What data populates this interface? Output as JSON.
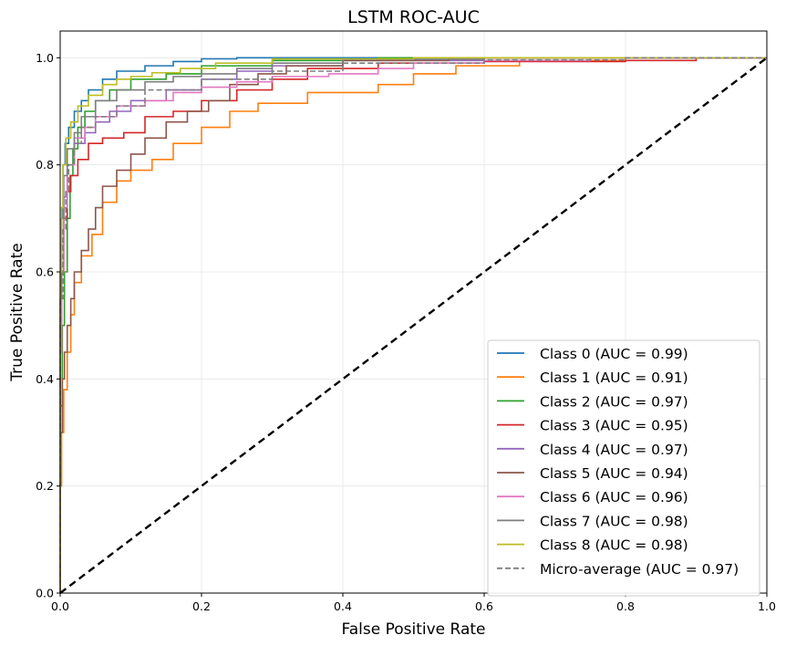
{
  "chart_data": {
    "type": "line",
    "title": "LSTM ROC-AUC",
    "xlabel": "False Positive Rate",
    "ylabel": "True Positive Rate",
    "xlim": [
      0,
      1.0
    ],
    "ylim": [
      0,
      1.05
    ],
    "xticks": [
      "0.0",
      "0.2",
      "0.4",
      "0.6",
      "0.8",
      "1.0"
    ],
    "yticks": [
      "0.0",
      "0.2",
      "0.4",
      "0.6",
      "0.8",
      "1.0"
    ],
    "grid": true,
    "legend_position": "lower right",
    "series": [
      {
        "name": "Class 0 (AUC = 0.99)",
        "color": "#1f77b4",
        "dash": "solid",
        "points": [
          [
            0,
            0
          ],
          [
            0.002,
            0.5
          ],
          [
            0.004,
            0.7
          ],
          [
            0.007,
            0.8
          ],
          [
            0.012,
            0.84
          ],
          [
            0.02,
            0.87
          ],
          [
            0.03,
            0.9
          ],
          [
            0.04,
            0.92
          ],
          [
            0.06,
            0.94
          ],
          [
            0.08,
            0.96
          ],
          [
            0.12,
            0.975
          ],
          [
            0.16,
            0.985
          ],
          [
            0.2,
            0.993
          ],
          [
            0.25,
            0.998
          ],
          [
            0.4,
            1.0
          ],
          [
            1.0,
            1.0
          ]
        ]
      },
      {
        "name": "Class 1 (AUC = 0.91)",
        "color": "#ff7f0e",
        "dash": "solid",
        "points": [
          [
            0,
            0
          ],
          [
            0.002,
            0.2
          ],
          [
            0.005,
            0.3
          ],
          [
            0.01,
            0.38
          ],
          [
            0.015,
            0.45
          ],
          [
            0.02,
            0.52
          ],
          [
            0.03,
            0.58
          ],
          [
            0.045,
            0.63
          ],
          [
            0.06,
            0.67
          ],
          [
            0.08,
            0.73
          ],
          [
            0.1,
            0.77
          ],
          [
            0.13,
            0.79
          ],
          [
            0.16,
            0.81
          ],
          [
            0.2,
            0.84
          ],
          [
            0.24,
            0.87
          ],
          [
            0.28,
            0.9
          ],
          [
            0.35,
            0.915
          ],
          [
            0.45,
            0.935
          ],
          [
            0.5,
            0.95
          ],
          [
            0.56,
            0.97
          ],
          [
            0.65,
            0.985
          ],
          [
            0.8,
            0.995
          ],
          [
            1.0,
            1.0
          ]
        ]
      },
      {
        "name": "Class 2 (AUC = 0.97)",
        "color": "#2ca02c",
        "dash": "solid",
        "points": [
          [
            0,
            0
          ],
          [
            0.003,
            0.35
          ],
          [
            0.006,
            0.5
          ],
          [
            0.01,
            0.6
          ],
          [
            0.014,
            0.7
          ],
          [
            0.018,
            0.78
          ],
          [
            0.025,
            0.83
          ],
          [
            0.035,
            0.87
          ],
          [
            0.05,
            0.9
          ],
          [
            0.07,
            0.92
          ],
          [
            0.1,
            0.94
          ],
          [
            0.15,
            0.96
          ],
          [
            0.2,
            0.97
          ],
          [
            0.3,
            0.985
          ],
          [
            0.45,
            0.995
          ],
          [
            0.65,
            1.0
          ],
          [
            1.0,
            1.0
          ]
        ]
      },
      {
        "name": "Class 3 (AUC = 0.95)",
        "color": "#d62728",
        "dash": "solid",
        "points": [
          [
            0,
            0
          ],
          [
            0.002,
            0.45
          ],
          [
            0.005,
            0.6
          ],
          [
            0.01,
            0.7
          ],
          [
            0.015,
            0.75
          ],
          [
            0.025,
            0.78
          ],
          [
            0.04,
            0.81
          ],
          [
            0.06,
            0.84
          ],
          [
            0.09,
            0.85
          ],
          [
            0.12,
            0.86
          ],
          [
            0.16,
            0.89
          ],
          [
            0.2,
            0.9
          ],
          [
            0.25,
            0.92
          ],
          [
            0.3,
            0.94
          ],
          [
            0.35,
            0.96
          ],
          [
            0.45,
            0.98
          ],
          [
            0.6,
            0.99
          ],
          [
            0.8,
            0.993
          ],
          [
            0.9,
            0.995
          ],
          [
            1.0,
            1.0
          ]
        ]
      },
      {
        "name": "Class 4 (AUC = 0.97)",
        "color": "#9467bd",
        "dash": "solid",
        "points": [
          [
            0,
            0
          ],
          [
            0.002,
            0.5
          ],
          [
            0.005,
            0.65
          ],
          [
            0.01,
            0.74
          ],
          [
            0.02,
            0.8
          ],
          [
            0.035,
            0.84
          ],
          [
            0.05,
            0.86
          ],
          [
            0.07,
            0.88
          ],
          [
            0.1,
            0.9
          ],
          [
            0.15,
            0.92
          ],
          [
            0.2,
            0.94
          ],
          [
            0.25,
            0.96
          ],
          [
            0.3,
            0.975
          ],
          [
            0.4,
            0.985
          ],
          [
            0.6,
            0.995
          ],
          [
            1.0,
            1.0
          ]
        ]
      },
      {
        "name": "Class 5 (AUC = 0.94)",
        "color": "#8c564b",
        "dash": "solid",
        "points": [
          [
            0,
            0
          ],
          [
            0.003,
            0.3
          ],
          [
            0.006,
            0.4
          ],
          [
            0.01,
            0.45
          ],
          [
            0.015,
            0.5
          ],
          [
            0.02,
            0.55
          ],
          [
            0.03,
            0.6
          ],
          [
            0.04,
            0.64
          ],
          [
            0.05,
            0.68
          ],
          [
            0.06,
            0.72
          ],
          [
            0.08,
            0.76
          ],
          [
            0.1,
            0.79
          ],
          [
            0.12,
            0.82
          ],
          [
            0.15,
            0.85
          ],
          [
            0.18,
            0.88
          ],
          [
            0.21,
            0.9
          ],
          [
            0.24,
            0.92
          ],
          [
            0.28,
            0.95
          ],
          [
            0.32,
            0.97
          ],
          [
            0.4,
            0.985
          ],
          [
            0.55,
            0.995
          ],
          [
            1.0,
            1.0
          ]
        ]
      },
      {
        "name": "Class 6 (AUC = 0.96)",
        "color": "#e377c2",
        "dash": "solid",
        "points": [
          [
            0,
            0
          ],
          [
            0.002,
            0.45
          ],
          [
            0.005,
            0.6
          ],
          [
            0.01,
            0.72
          ],
          [
            0.02,
            0.8
          ],
          [
            0.035,
            0.85
          ],
          [
            0.05,
            0.87
          ],
          [
            0.08,
            0.89
          ],
          [
            0.12,
            0.91
          ],
          [
            0.16,
            0.92
          ],
          [
            0.2,
            0.935
          ],
          [
            0.25,
            0.945
          ],
          [
            0.3,
            0.955
          ],
          [
            0.38,
            0.965
          ],
          [
            0.45,
            0.97
          ],
          [
            0.5,
            0.98
          ],
          [
            0.6,
            0.99
          ],
          [
            0.75,
            0.995
          ],
          [
            1.0,
            1.0
          ]
        ]
      },
      {
        "name": "Class 7 (AUC = 0.98)",
        "color": "#7f7f7f",
        "dash": "solid",
        "points": [
          [
            0,
            0
          ],
          [
            0.002,
            0.55
          ],
          [
            0.005,
            0.7
          ],
          [
            0.01,
            0.78
          ],
          [
            0.02,
            0.83
          ],
          [
            0.03,
            0.86
          ],
          [
            0.05,
            0.89
          ],
          [
            0.08,
            0.92
          ],
          [
            0.12,
            0.94
          ],
          [
            0.16,
            0.955
          ],
          [
            0.2,
            0.965
          ],
          [
            0.25,
            0.97
          ],
          [
            0.3,
            0.98
          ],
          [
            0.4,
            0.99
          ],
          [
            0.6,
            0.997
          ],
          [
            1.0,
            1.0
          ]
        ]
      },
      {
        "name": "Class 8 (AUC = 0.98)",
        "color": "#bcbd22",
        "dash": "solid",
        "points": [
          [
            0,
            0
          ],
          [
            0.002,
            0.6
          ],
          [
            0.004,
            0.72
          ],
          [
            0.008,
            0.8
          ],
          [
            0.015,
            0.85
          ],
          [
            0.025,
            0.88
          ],
          [
            0.04,
            0.91
          ],
          [
            0.06,
            0.93
          ],
          [
            0.08,
            0.95
          ],
          [
            0.1,
            0.96
          ],
          [
            0.13,
            0.965
          ],
          [
            0.17,
            0.972
          ],
          [
            0.22,
            0.98
          ],
          [
            0.3,
            0.99
          ],
          [
            0.5,
            0.998
          ],
          [
            1.0,
            1.0
          ]
        ]
      },
      {
        "name": "Micro-average (AUC = 0.97)",
        "color": "#7f7f7f",
        "dash": "dashed",
        "points": [
          [
            0,
            0
          ],
          [
            0.004,
            0.55
          ],
          [
            0.008,
            0.68
          ],
          [
            0.012,
            0.75
          ],
          [
            0.02,
            0.8
          ],
          [
            0.03,
            0.84
          ],
          [
            0.05,
            0.87
          ],
          [
            0.08,
            0.89
          ],
          [
            0.12,
            0.91
          ],
          [
            0.2,
            0.94
          ],
          [
            0.3,
            0.96
          ],
          [
            0.4,
            0.975
          ],
          [
            0.6,
            0.99
          ],
          [
            0.8,
            0.996
          ],
          [
            1.0,
            1.0
          ]
        ]
      }
    ],
    "reference_line": {
      "points": [
        [
          0,
          0
        ],
        [
          1,
          1
        ]
      ],
      "color": "#000000",
      "dash": "dashed"
    }
  }
}
